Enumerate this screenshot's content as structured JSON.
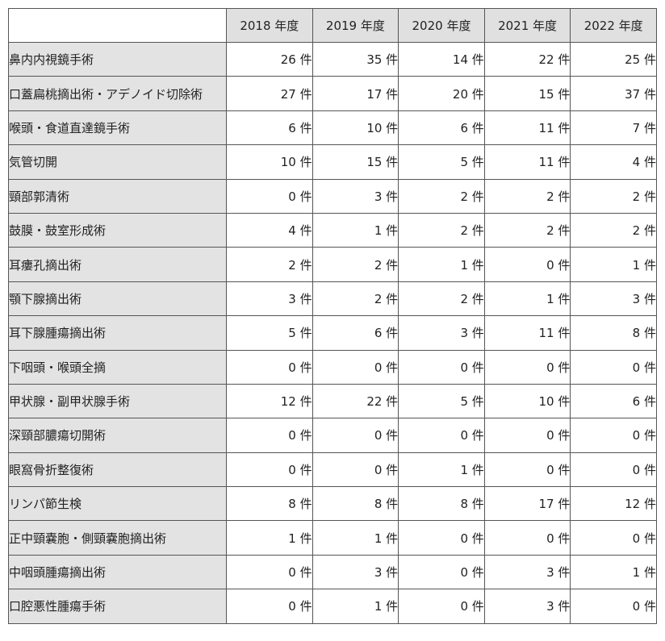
{
  "table": {
    "unit": "件",
    "years": [
      "2018 年度",
      "2019 年度",
      "2020 年度",
      "2021 年度",
      "2022 年度"
    ],
    "rows": [
      {
        "name": "鼻内内視鏡手術",
        "values": [
          "26 件",
          "35 件",
          "14 件",
          "22 件",
          "25 件"
        ]
      },
      {
        "name": "口蓋扁桃摘出術・アデノイド切除術",
        "values": [
          "27 件",
          "17 件",
          "20 件",
          "15 件",
          "37 件"
        ]
      },
      {
        "name": "喉頭・食道直達鏡手術",
        "values": [
          "6 件",
          "10 件",
          "6 件",
          "11 件",
          "7 件"
        ]
      },
      {
        "name": "気管切開",
        "values": [
          "10 件",
          "15 件",
          "5 件",
          "11 件",
          "4 件"
        ]
      },
      {
        "name": "頸部郭清術",
        "values": [
          "0 件",
          "3 件",
          "2 件",
          "2 件",
          "2 件"
        ]
      },
      {
        "name": "鼓膜・鼓室形成術",
        "values": [
          "4 件",
          "1 件",
          "2 件",
          "2 件",
          "2 件"
        ]
      },
      {
        "name": "耳瘻孔摘出術",
        "values": [
          "2 件",
          "2 件",
          "1 件",
          "0 件",
          "1 件"
        ]
      },
      {
        "name": "顎下腺摘出術",
        "values": [
          "3 件",
          "2 件",
          "2 件",
          "1 件",
          "3 件"
        ]
      },
      {
        "name": "耳下腺腫瘍摘出術",
        "values": [
          "5 件",
          "6 件",
          "3 件",
          "11 件",
          "8 件"
        ]
      },
      {
        "name": "下咽頭・喉頭全摘",
        "values": [
          "0 件",
          "0 件",
          "0 件",
          "0 件",
          "0 件"
        ]
      },
      {
        "name": "甲状腺・副甲状腺手術",
        "values": [
          "12 件",
          "22 件",
          "5 件",
          "10 件",
          "6 件"
        ]
      },
      {
        "name": "深頸部膿瘍切開術",
        "values": [
          "0 件",
          "0 件",
          "0 件",
          "0 件",
          "0 件"
        ]
      },
      {
        "name": "眼窩骨折整復術",
        "values": [
          "0 件",
          "0 件",
          "1 件",
          "0 件",
          "0 件"
        ]
      },
      {
        "name": "リンパ節生検",
        "values": [
          "8 件",
          "8 件",
          "8 件",
          "17 件",
          "12 件"
        ]
      },
      {
        "name": "正中頸嚢胞・側頸嚢胞摘出術",
        "values": [
          "1 件",
          "1 件",
          "0 件",
          "0 件",
          "0 件"
        ]
      },
      {
        "name": "中咽頭腫瘍摘出術",
        "values": [
          "0 件",
          "3 件",
          "0 件",
          "3 件",
          "1 件"
        ]
      },
      {
        "name": "口腔悪性腫瘍手術",
        "values": [
          "0 件",
          "1 件",
          "0 件",
          "3 件",
          "0 件"
        ]
      }
    ]
  }
}
